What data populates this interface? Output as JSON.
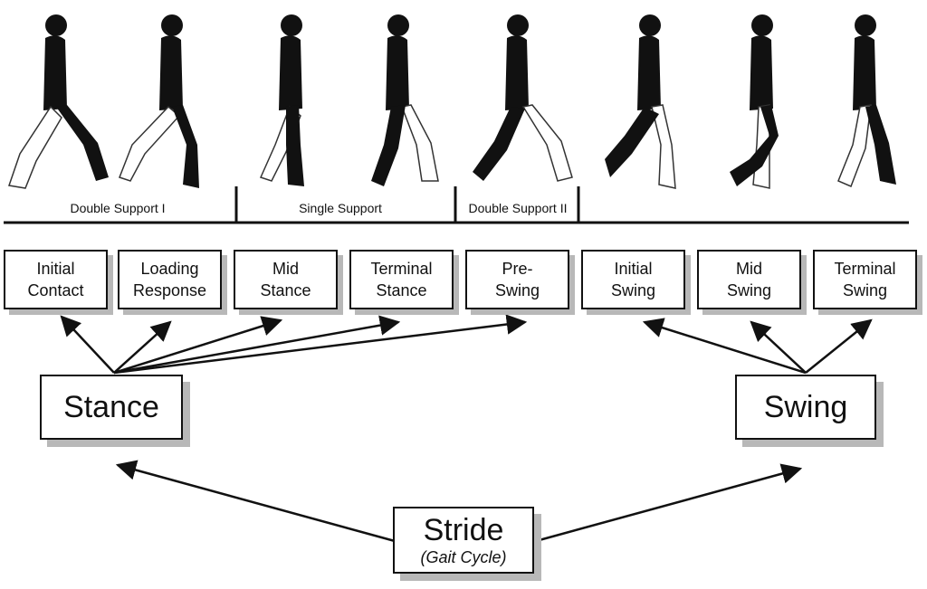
{
  "support_phases": [
    {
      "label": "Double Support I"
    },
    {
      "label": "Single Support"
    },
    {
      "label": "Double Support II"
    }
  ],
  "phases": [
    {
      "label": "Initial\nContact"
    },
    {
      "label": "Loading\nResponse"
    },
    {
      "label": "Mid\nStance"
    },
    {
      "label": "Terminal\nStance"
    },
    {
      "label": "Pre-\nSwing"
    },
    {
      "label": "Initial\nSwing"
    },
    {
      "label": "Mid\nSwing"
    },
    {
      "label": "Terminal\nSwing"
    }
  ],
  "stance": {
    "label": "Stance"
  },
  "swing": {
    "label": "Swing"
  },
  "stride": {
    "label": "Stride",
    "sublabel": "(Gait Cycle)"
  },
  "colors": {
    "ink": "#111111",
    "shadow": "#b8b8b8",
    "background": "#ffffff"
  },
  "icons": [
    "walking-figure-icon"
  ]
}
